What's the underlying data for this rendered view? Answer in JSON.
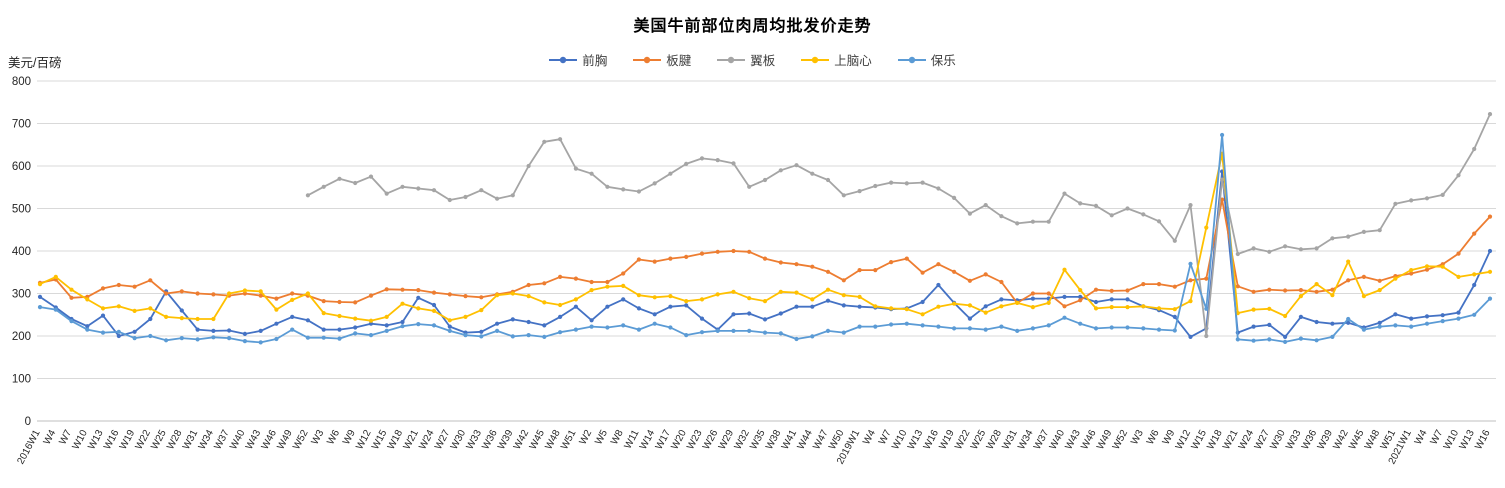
{
  "chart_data": {
    "type": "line",
    "title": "美国牛前部位肉周均批发价走势",
    "ylabel": "美元/百磅",
    "ylim": [
      0,
      800
    ],
    "ytick_step": 100,
    "grid": true,
    "legend_position": "top",
    "marker": "dot",
    "categories": [
      "2016W1",
      "W4",
      "W7",
      "W10",
      "W13",
      "W16",
      "W19",
      "W22",
      "W25",
      "W28",
      "W31",
      "W34",
      "W37",
      "W40",
      "W43",
      "W46",
      "W49",
      "W52",
      "W3",
      "W6",
      "W9",
      "W12",
      "W15",
      "W18",
      "W21",
      "W24",
      "W27",
      "W30",
      "W33",
      "W36",
      "W39",
      "W42",
      "W45",
      "W48",
      "W51",
      "W2",
      "W5",
      "W8",
      "W11",
      "W14",
      "W17",
      "W20",
      "W23",
      "W26",
      "W29",
      "W32",
      "W35",
      "W38",
      "W41",
      "W44",
      "W47",
      "W50",
      "2019W1",
      "W4",
      "W7",
      "W10",
      "W13",
      "W16",
      "W19",
      "W22",
      "W25",
      "W28",
      "W31",
      "W34",
      "W37",
      "W40",
      "W43",
      "W46",
      "W49",
      "W52",
      "W3",
      "W6",
      "W9",
      "W12",
      "W15",
      "W18",
      "W21",
      "W24",
      "W27",
      "W30",
      "W33",
      "W36",
      "W39",
      "W42",
      "W45",
      "W48",
      "W51",
      "2021W1",
      "W4",
      "W7",
      "W10",
      "W13",
      "W16"
    ],
    "series": [
      {
        "name": "前胸",
        "color": "#4472C4",
        "values": [
          292,
          267,
          240,
          223,
          248,
          200,
          210,
          240,
          305,
          260,
          215,
          212,
          213,
          205,
          212,
          229,
          245,
          237,
          215,
          215,
          220,
          229,
          225,
          233,
          290,
          273,
          222,
          208,
          210,
          229,
          239,
          233,
          225,
          245,
          269,
          237,
          269,
          286,
          265,
          251,
          269,
          272,
          241,
          215,
          251,
          253,
          239,
          253,
          269,
          269,
          283,
          272,
          269,
          267,
          263,
          265,
          280,
          320,
          278,
          241,
          270,
          286,
          284,
          288,
          288,
          292,
          292,
          280,
          286,
          286,
          270,
          261,
          245,
          198,
          218,
          587,
          208,
          222,
          226,
          198,
          245,
          233,
          229,
          231,
          220,
          231,
          251,
          241,
          246,
          249,
          255,
          320,
          400
        ]
      },
      {
        "name": "板腱",
        "color": "#ED7D31",
        "values": [
          325,
          333,
          290,
          292,
          312,
          320,
          316,
          331,
          300,
          305,
          300,
          298,
          295,
          300,
          295,
          288,
          300,
          295,
          282,
          280,
          279,
          295,
          310,
          309,
          308,
          302,
          298,
          294,
          291,
          298,
          304,
          320,
          324,
          339,
          335,
          327,
          327,
          347,
          380,
          375,
          382,
          386,
          394,
          398,
          400,
          398,
          382,
          373,
          369,
          363,
          351,
          331,
          355,
          355,
          374,
          382,
          349,
          369,
          351,
          330,
          345,
          327,
          278,
          300,
          300,
          270,
          284,
          309,
          306,
          307,
          322,
          322,
          316,
          331,
          335,
          521,
          317,
          304,
          309,
          307,
          308,
          304,
          309,
          331,
          339,
          330,
          341,
          347,
          356,
          369,
          394,
          441,
          481
        ]
      },
      {
        "name": "翼板",
        "color": "#A5A5A5",
        "values": [
          null,
          null,
          null,
          null,
          null,
          null,
          null,
          null,
          null,
          null,
          null,
          null,
          null,
          null,
          null,
          null,
          null,
          531,
          551,
          570,
          560,
          575,
          535,
          551,
          547,
          543,
          520,
          527,
          543,
          523,
          531,
          600,
          657,
          663,
          594,
          582,
          551,
          545,
          540,
          559,
          582,
          605,
          618,
          614,
          606,
          551,
          567,
          590,
          602,
          582,
          567,
          531,
          541,
          553,
          561,
          559,
          561,
          547,
          525,
          488,
          508,
          482,
          465,
          469,
          469,
          535,
          512,
          506,
          484,
          500,
          486,
          470,
          424,
          508,
          200,
          568,
          393,
          406,
          398,
          411,
          404,
          406,
          430,
          434,
          445,
          449,
          511,
          519,
          524,
          532,
          578,
          640,
          722
        ]
      },
      {
        "name": "上脑心",
        "color": "#FFC000",
        "values": [
          322,
          339,
          309,
          286,
          265,
          270,
          259,
          265,
          245,
          242,
          240,
          240,
          300,
          307,
          305,
          262,
          285,
          300,
          254,
          247,
          241,
          236,
          245,
          276,
          265,
          259,
          237,
          245,
          261,
          296,
          300,
          294,
          279,
          273,
          286,
          308,
          316,
          318,
          296,
          291,
          294,
          282,
          286,
          298,
          304,
          289,
          282,
          304,
          302,
          286,
          309,
          296,
          292,
          270,
          265,
          263,
          251,
          269,
          276,
          272,
          255,
          270,
          278,
          268,
          278,
          356,
          308,
          265,
          268,
          268,
          270,
          265,
          263,
          282,
          455,
          629,
          254,
          262,
          264,
          247,
          294,
          322,
          296,
          375,
          294,
          308,
          335,
          355,
          364,
          363,
          339,
          345,
          351
        ]
      },
      {
        "name": "保乐",
        "color": "#5B9BD5",
        "values": [
          268,
          262,
          235,
          215,
          208,
          210,
          195,
          200,
          190,
          195,
          192,
          197,
          195,
          188,
          185,
          193,
          215,
          196,
          196,
          194,
          206,
          202,
          212,
          223,
          228,
          225,
          212,
          202,
          199,
          212,
          199,
          202,
          198,
          209,
          215,
          222,
          220,
          225,
          215,
          229,
          220,
          202,
          209,
          212,
          212,
          212,
          208,
          206,
          193,
          199,
          212,
          208,
          222,
          222,
          227,
          229,
          225,
          222,
          218,
          218,
          215,
          222,
          212,
          218,
          225,
          243,
          229,
          218,
          220,
          220,
          218,
          215,
          213,
          370,
          264,
          673,
          192,
          189,
          192,
          186,
          194,
          190,
          198,
          240,
          215,
          222,
          225,
          222,
          229,
          235,
          241,
          250,
          288
        ]
      }
    ],
    "yticks": [
      0,
      100,
      200,
      300,
      400,
      500,
      600,
      700,
      800
    ]
  }
}
